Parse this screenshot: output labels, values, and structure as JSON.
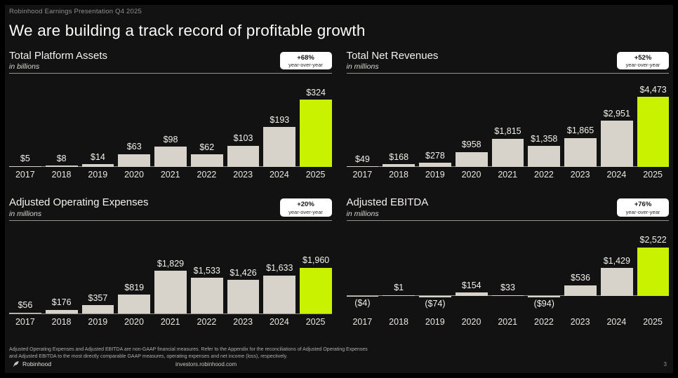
{
  "page": {
    "eyebrow": "Robinhood Earnings Presentation Q4 2025",
    "title": "We are building a track record of profitable growth",
    "page_number": "3"
  },
  "colors": {
    "background": "#000000",
    "slide_bg": "#121212",
    "bar_default": "#d7d3cb",
    "bar_highlight": "#c9f200",
    "axis_line": "#96938d",
    "badge_bg": "#ffffff",
    "badge_text": "#141414"
  },
  "chart_data": [
    {
      "type": "bar",
      "title": "Total Platform Assets",
      "subtitle": "in billions",
      "badge": {
        "growth": "+68%",
        "caption": "year-over-year"
      },
      "categories": [
        "2017",
        "2018",
        "2019",
        "2020",
        "2021",
        "2022",
        "2023",
        "2024",
        "2025"
      ],
      "values": [
        5,
        8,
        14,
        63,
        98,
        62,
        103,
        193,
        324
      ],
      "labels": [
        "$5",
        "$8",
        "$14",
        "$63",
        "$98",
        "$62",
        "$103",
        "$193",
        "$324"
      ],
      "ylim": [
        0,
        449
      ],
      "grid": false,
      "highlight_index": 8
    },
    {
      "type": "bar",
      "title": "Total Net Revenues",
      "subtitle": "in millions",
      "badge": {
        "growth": "+52%",
        "caption": "year-over-year"
      },
      "categories": [
        "2017",
        "2018",
        "2019",
        "2020",
        "2021",
        "2022",
        "2023",
        "2024",
        "2025"
      ],
      "values": [
        49,
        168,
        278,
        958,
        1815,
        1358,
        1865,
        2951,
        4473
      ],
      "labels": [
        "$49",
        "$168",
        "$278",
        "$958",
        "$1,815",
        "$1,358",
        "$1,865",
        "$2,951",
        "$4,473"
      ],
      "ylim": [
        0,
        5950
      ],
      "grid": false,
      "highlight_index": 8
    },
    {
      "type": "bar",
      "title": "Adjusted Operating Expenses",
      "subtitle": "in millions",
      "badge": {
        "growth": "+20%",
        "caption": "year-over-year"
      },
      "categories": [
        "2017",
        "2018",
        "2019",
        "2020",
        "2021",
        "2022",
        "2023",
        "2024",
        "2025"
      ],
      "values": [
        56,
        176,
        357,
        819,
        1829,
        1533,
        1426,
        1633,
        1960
      ],
      "labels": [
        "$56",
        "$176",
        "$357",
        "$819",
        "$1,829",
        "$1,533",
        "$1,426",
        "$1,633",
        "$1,960"
      ],
      "ylim": [
        0,
        3950
      ],
      "grid": false,
      "highlight_index": 8
    },
    {
      "type": "bar",
      "title": "Adjusted EBITDA",
      "subtitle": "in millions",
      "badge": {
        "growth": "+76%",
        "caption": "year-over-year"
      },
      "categories": [
        "2017",
        "2018",
        "2019",
        "2020",
        "2021",
        "2022",
        "2023",
        "2024",
        "2025"
      ],
      "values": [
        -4,
        1,
        -74,
        154,
        33,
        -94,
        536,
        1429,
        2522
      ],
      "labels": [
        "($4)",
        "$1",
        "($74)",
        "$154",
        "$33",
        "($94)",
        "$536",
        "$1,429",
        "$2,522"
      ],
      "ylim": [
        -950,
        3912
      ],
      "grid": false,
      "highlight_index": 8
    }
  ],
  "footnote": "Adjusted Operating Expenses and Adjusted EBITDA are non-GAAP financial measures. Refer to the Appendix for the reconciliations of Adjusted Operating Expenses and Adjusted EBITDA to the most directly comparable GAAP measures, operating expenses and net income (loss), respectively.",
  "footer": {
    "brand": "Robinhood",
    "url": "investors.robinhood.com"
  }
}
